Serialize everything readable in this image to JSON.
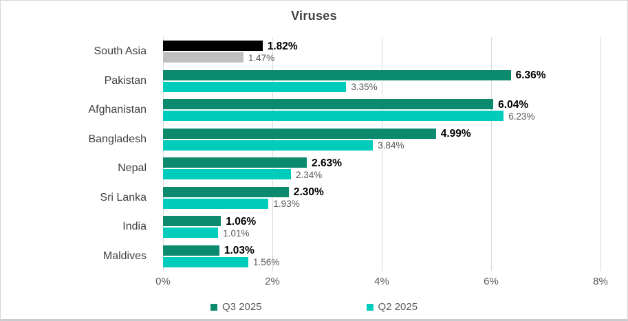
{
  "chart_data": {
    "type": "bar",
    "orientation": "horizontal",
    "title": "Viruses",
    "categories": [
      "South Asia",
      "Pakistan",
      "Afghanistan",
      "Bangladesh",
      "Nepal",
      "Sri Lanka",
      "India",
      "Maldives"
    ],
    "series": [
      {
        "name": "Q3 2025",
        "color": "#0b8a6e",
        "values": [
          1.82,
          6.36,
          6.04,
          4.99,
          2.63,
          2.3,
          1.06,
          1.03
        ],
        "labels": [
          "1.82%",
          "6.36%",
          "6.04%",
          "4.99%",
          "2.63%",
          "2.30%",
          "1.06%",
          "1.03%"
        ]
      },
      {
        "name": "Q2 2025",
        "color": "#00ccbc",
        "values": [
          1.47,
          3.35,
          6.23,
          3.84,
          2.34,
          1.93,
          1.01,
          1.56
        ],
        "labels": [
          "1.47%",
          "3.35%",
          "6.23%",
          "3.84%",
          "2.34%",
          "1.93%",
          "1.01%",
          "1.56%"
        ]
      }
    ],
    "category_color_overrides": {
      "South Asia": {
        "Q3 2025": "#000000",
        "Q2 2025": "#bfbfbf"
      }
    },
    "x_ticks": [
      "0%",
      "2%",
      "4%",
      "6%",
      "8%"
    ],
    "xlim": [
      0,
      8
    ],
    "xlabel": "",
    "ylabel": "",
    "gridlines": true,
    "gridline_color": "#d9d9d9",
    "legend_position": "bottom",
    "title_color": "#404040",
    "category_label_color": "#404040",
    "axis_label_color": "#595959",
    "q3_data_label_color": "#000000",
    "q2_data_label_color": "#595959"
  }
}
